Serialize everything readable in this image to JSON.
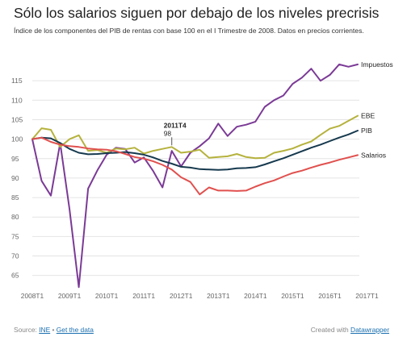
{
  "title": "Sólo los salarios siguen por debajo de los niveles precrisis",
  "subtitle": "Índice de los componentes del PIB de rentas con base 100 en el I Trimestre de 2008. Datos en precios corrientes.",
  "footer": {
    "source_prefix": "Source:",
    "source_link": "INE",
    "separator": "•",
    "data_link": "Get the data",
    "credit_prefix": "Created with",
    "credit_link": "Datawrapper"
  },
  "annotation": {
    "label": "2011T4",
    "value": "98"
  },
  "colors": {
    "Impuestos": "#7b3a96",
    "EBE": "#b5b23d",
    "PIB": "#16394e",
    "Salarios": "#e0504e",
    "grid": "#e4e4e4",
    "text": "#666666",
    "link": "#1a6fb0"
  },
  "chart_data": {
    "type": "line",
    "title": "Sólo los salarios siguen por debajo de los niveles precrisis",
    "xlabel": "",
    "ylabel": "",
    "x_ticks": [
      "2008T1",
      "2009T1",
      "2010T1",
      "2011T1",
      "2012T1",
      "2013T1",
      "2014T1",
      "2015T1",
      "2016T1",
      "2017T1"
    ],
    "y_ticks": [
      65,
      70,
      75,
      80,
      85,
      90,
      95,
      100,
      105,
      110,
      115
    ],
    "ylim": [
      61,
      120
    ],
    "grid": true,
    "legend": "inline labels at line ends (right)",
    "x_start": "2008T1",
    "x_end": "2017T1",
    "series": [
      {
        "name": "Impuestos",
        "values": [
          100,
          89.3,
          85.5,
          99,
          82,
          62,
          87.3,
          92,
          96,
          97.8,
          97.5,
          94,
          95.3,
          91.8,
          87.6,
          97,
          93,
          96.5,
          98.2,
          100.2,
          104,
          100.8,
          103.2,
          103.7,
          104.5,
          108.3,
          110,
          111.2,
          114.2,
          115.8,
          118.1,
          115,
          116.5,
          119.2,
          118.6,
          119.2
        ]
      },
      {
        "name": "EBE",
        "values": [
          100,
          102.8,
          102.4,
          98,
          100,
          101,
          97,
          97.2,
          96.5,
          97.6,
          97.4,
          97.8,
          96.3,
          97,
          97.5,
          98,
          96.5,
          96.8,
          97.3,
          95.2,
          95.4,
          95.6,
          96.2,
          95.4,
          95.1,
          95.2,
          96.5,
          97,
          97.6,
          98.6,
          99.4,
          101.1,
          102.7,
          103.4,
          104.7,
          106
        ]
      },
      {
        "name": "PIB",
        "values": [
          100,
          100.4,
          100.2,
          99,
          97.5,
          96.5,
          96.1,
          96.2,
          96.4,
          96.5,
          96.7,
          96.4,
          96,
          95.3,
          94.4,
          93.7,
          92.9,
          92.7,
          92.3,
          92.2,
          92.1,
          92.2,
          92.5,
          92.6,
          92.8,
          93.5,
          94.3,
          95.1,
          96,
          96.9,
          97.8,
          98.6,
          99.5,
          100.4,
          101.2,
          102.2
        ]
      },
      {
        "name": "Salarios",
        "values": [
          100,
          100.4,
          99.3,
          98.6,
          98.2,
          98,
          97.6,
          97.4,
          97.3,
          96.9,
          96.2,
          95.4,
          95,
          94.3,
          93.4,
          92.2,
          90.2,
          89,
          85.8,
          87.6,
          86.8,
          86.8,
          86.7,
          86.8,
          87.8,
          88.7,
          89.4,
          90.4,
          91.3,
          91.9,
          92.7,
          93.4,
          94,
          94.7,
          95.3,
          95.9
        ]
      }
    ]
  }
}
